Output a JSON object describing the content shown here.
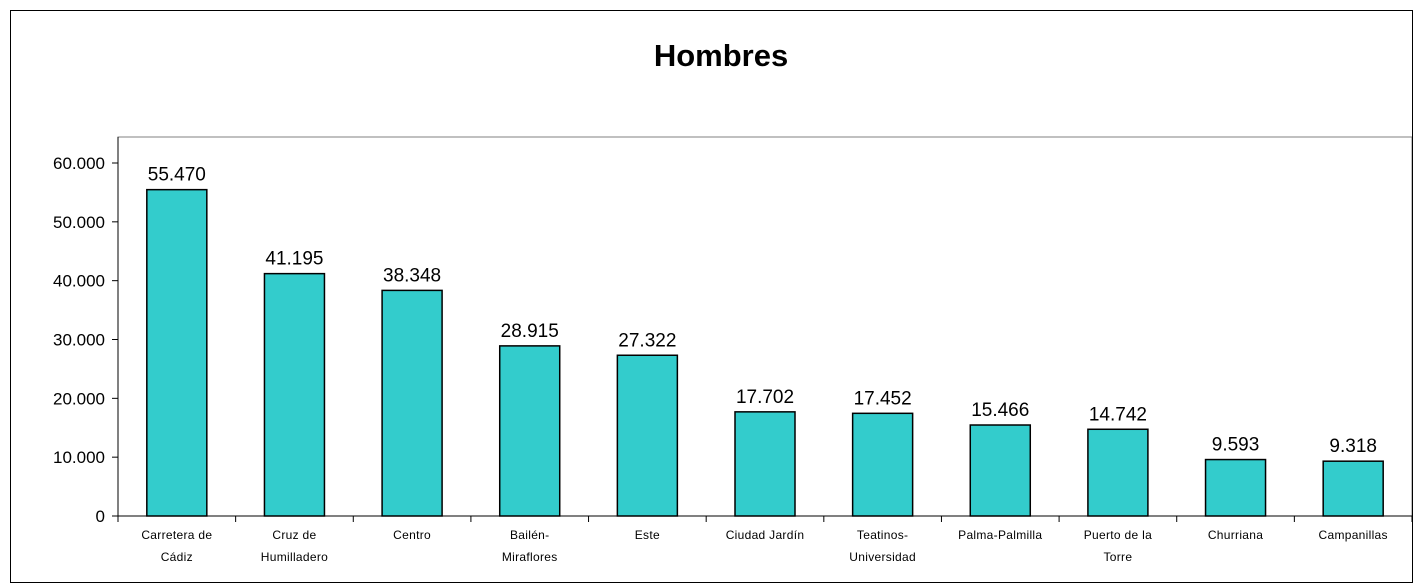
{
  "chart_data": {
    "type": "bar",
    "title": "Hombres",
    "xlabel": "",
    "ylabel": "",
    "categories": [
      [
        "Carretera de",
        "Cádiz"
      ],
      [
        "Cruz de",
        "Humilladero"
      ],
      [
        "Centro"
      ],
      [
        "Bailén-",
        "Miraflores"
      ],
      [
        "Este"
      ],
      [
        "Ciudad Jardín"
      ],
      [
        "Teatinos-",
        "Universidad"
      ],
      [
        "Palma-Palmilla"
      ],
      [
        "Puerto de la",
        "Torre"
      ],
      [
        "Churriana"
      ],
      [
        "Campanillas"
      ]
    ],
    "values": [
      55470,
      41195,
      38348,
      28915,
      27322,
      17702,
      17452,
      15466,
      14742,
      9593,
      9318
    ],
    "data_labels": [
      "55.470",
      "41.195",
      "38.348",
      "28.915",
      "27.322",
      "17.702",
      "17.452",
      "15.466",
      "14.742",
      "9.593",
      "9.318"
    ],
    "ylim": [
      0,
      60000
    ],
    "yticks": [
      0,
      10000,
      20000,
      30000,
      40000,
      50000,
      60000
    ],
    "ytick_labels": [
      "0",
      "10.000",
      "20.000",
      "30.000",
      "40.000",
      "50.000",
      "60.000"
    ],
    "grid": false,
    "legend": "none",
    "colors": {
      "bar_fill": "#33CCCC",
      "bar_stroke": "#000000",
      "plot_border": "#808080",
      "background": "#FFFFFF"
    }
  }
}
